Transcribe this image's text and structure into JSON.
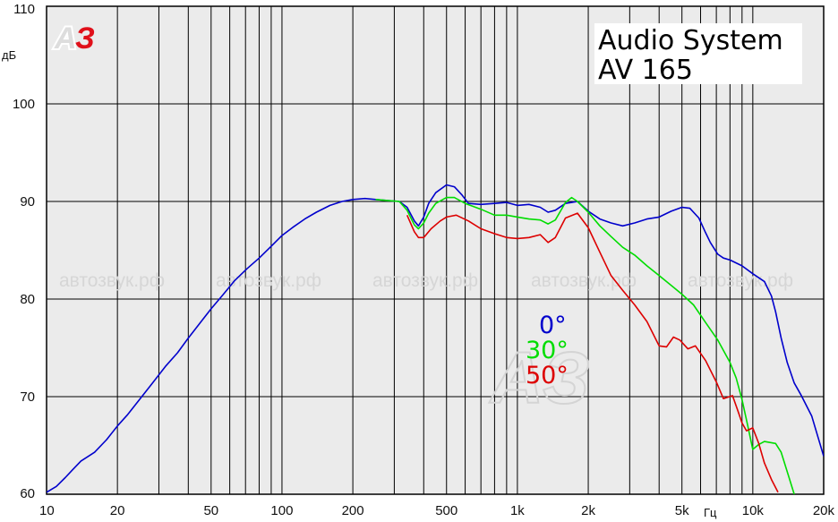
{
  "chart_data": {
    "type": "line",
    "title_lines": [
      "Audio System",
      "AV 165"
    ],
    "ylabel": "дБ",
    "xlabel": "Гц",
    "xscale": "log",
    "xlim": [
      10,
      20000
    ],
    "ylim": [
      60,
      110
    ],
    "xticks": [
      {
        "value": 10,
        "label": "10"
      },
      {
        "value": 20,
        "label": "20"
      },
      {
        "value": 50,
        "label": "50"
      },
      {
        "value": 100,
        "label": "100"
      },
      {
        "value": 200,
        "label": "200"
      },
      {
        "value": 500,
        "label": "500"
      },
      {
        "value": 1000,
        "label": "1k"
      },
      {
        "value": 2000,
        "label": "2k"
      },
      {
        "value": 5000,
        "label": "5k"
      },
      {
        "value": 10000,
        "label": "10k"
      },
      {
        "value": 20000,
        "label": "20k"
      }
    ],
    "yticks": [
      60,
      70,
      80,
      90,
      100,
      110
    ],
    "grid": true,
    "logo_text": "АЗ",
    "watermark_text": "автозвук.рф",
    "series": [
      {
        "name": "0°",
        "color": "#0000cc",
        "points": [
          [
            10,
            60.2
          ],
          [
            11,
            60.8
          ],
          [
            12,
            61.7
          ],
          [
            13,
            62.6
          ],
          [
            14,
            63.4
          ],
          [
            16,
            64.3
          ],
          [
            18,
            65.6
          ],
          [
            20,
            67
          ],
          [
            22,
            68.1
          ],
          [
            25,
            69.8
          ],
          [
            28,
            71.3
          ],
          [
            32,
            73.1
          ],
          [
            36,
            74.5
          ],
          [
            40,
            76
          ],
          [
            45,
            77.6
          ],
          [
            50,
            79
          ],
          [
            56,
            80.4
          ],
          [
            63,
            81.9
          ],
          [
            71,
            83.1
          ],
          [
            80,
            84.2
          ],
          [
            90,
            85.4
          ],
          [
            100,
            86.5
          ],
          [
            112,
            87.4
          ],
          [
            125,
            88.2
          ],
          [
            140,
            88.9
          ],
          [
            160,
            89.6
          ],
          [
            180,
            90.0
          ],
          [
            200,
            90.2
          ],
          [
            225,
            90.3
          ],
          [
            250,
            90.2
          ],
          [
            280,
            90.1
          ],
          [
            315,
            90.0
          ],
          [
            340,
            89.4
          ],
          [
            365,
            88.0
          ],
          [
            380,
            87.5
          ],
          [
            400,
            88.4
          ],
          [
            420,
            89.8
          ],
          [
            450,
            90.9
          ],
          [
            500,
            91.7
          ],
          [
            540,
            91.5
          ],
          [
            580,
            90.7
          ],
          [
            620,
            89.8
          ],
          [
            700,
            89.7
          ],
          [
            800,
            89.8
          ],
          [
            900,
            89.9
          ],
          [
            1000,
            89.6
          ],
          [
            1120,
            89.7
          ],
          [
            1250,
            89.4
          ],
          [
            1350,
            88.9
          ],
          [
            1450,
            89.1
          ],
          [
            1600,
            89.8
          ],
          [
            1800,
            90.0
          ],
          [
            2000,
            89.0
          ],
          [
            2240,
            88.2
          ],
          [
            2500,
            87.8
          ],
          [
            2800,
            87.5
          ],
          [
            3150,
            87.8
          ],
          [
            3550,
            88.2
          ],
          [
            4000,
            88.4
          ],
          [
            4500,
            89.0
          ],
          [
            5000,
            89.4
          ],
          [
            5400,
            89.3
          ],
          [
            5900,
            88.3
          ],
          [
            6300,
            86.8
          ],
          [
            6600,
            85.8
          ],
          [
            7100,
            84.6
          ],
          [
            7500,
            84.2
          ],
          [
            8000,
            84.0
          ],
          [
            9000,
            83.4
          ],
          [
            10000,
            82.6
          ],
          [
            11200,
            81.8
          ],
          [
            12000,
            80.3
          ],
          [
            12500,
            78.7
          ],
          [
            13200,
            76.0
          ],
          [
            14000,
            73.5
          ],
          [
            15000,
            71.4
          ],
          [
            16000,
            70.2
          ],
          [
            17800,
            68.0
          ],
          [
            20000,
            63.9
          ]
        ]
      },
      {
        "name": "30°",
        "color": "#00dd00",
        "points": [
          [
            250,
            90.2
          ],
          [
            280,
            90.1
          ],
          [
            315,
            90.0
          ],
          [
            340,
            89.1
          ],
          [
            365,
            87.6
          ],
          [
            380,
            87.2
          ],
          [
            400,
            87.8
          ],
          [
            420,
            88.8
          ],
          [
            450,
            89.8
          ],
          [
            500,
            90.4
          ],
          [
            540,
            90.4
          ],
          [
            600,
            89.8
          ],
          [
            700,
            89.2
          ],
          [
            800,
            88.6
          ],
          [
            900,
            88.6
          ],
          [
            1000,
            88.4
          ],
          [
            1120,
            88.2
          ],
          [
            1250,
            88.1
          ],
          [
            1350,
            87.7
          ],
          [
            1450,
            88.1
          ],
          [
            1600,
            89.9
          ],
          [
            1700,
            90.4
          ],
          [
            1800,
            90.0
          ],
          [
            2000,
            88.9
          ],
          [
            2240,
            87.5
          ],
          [
            2500,
            86.4
          ],
          [
            2800,
            85.3
          ],
          [
            3150,
            84.5
          ],
          [
            3550,
            83.4
          ],
          [
            4000,
            82.4
          ],
          [
            4500,
            81.4
          ],
          [
            5000,
            80.5
          ],
          [
            5600,
            79.4
          ],
          [
            6300,
            77.6
          ],
          [
            7100,
            75.8
          ],
          [
            8000,
            73.5
          ],
          [
            8500,
            71.9
          ],
          [
            9000,
            69.7
          ],
          [
            9500,
            67.1
          ],
          [
            10000,
            64.6
          ],
          [
            10600,
            65.1
          ],
          [
            11200,
            65.4
          ],
          [
            12500,
            65.2
          ],
          [
            13200,
            64.3
          ],
          [
            14000,
            62.3
          ],
          [
            15000,
            60
          ]
        ]
      },
      {
        "name": "50°",
        "color": "#dd0000",
        "points": [
          [
            340,
            88.6
          ],
          [
            365,
            86.9
          ],
          [
            380,
            86.3
          ],
          [
            400,
            86.3
          ],
          [
            430,
            87.2
          ],
          [
            470,
            88.0
          ],
          [
            500,
            88.4
          ],
          [
            550,
            88.6
          ],
          [
            620,
            88.0
          ],
          [
            700,
            87.2
          ],
          [
            800,
            86.7
          ],
          [
            900,
            86.3
          ],
          [
            1000,
            86.2
          ],
          [
            1120,
            86.3
          ],
          [
            1250,
            86.6
          ],
          [
            1350,
            85.8
          ],
          [
            1450,
            86.3
          ],
          [
            1600,
            88.3
          ],
          [
            1800,
            88.8
          ],
          [
            2000,
            87.3
          ],
          [
            2240,
            84.8
          ],
          [
            2500,
            82.4
          ],
          [
            2800,
            80.9
          ],
          [
            3150,
            79.4
          ],
          [
            3550,
            77.7
          ],
          [
            4000,
            75.2
          ],
          [
            4300,
            75.1
          ],
          [
            4600,
            76.1
          ],
          [
            4900,
            75.8
          ],
          [
            5300,
            74.9
          ],
          [
            5700,
            75.2
          ],
          [
            6300,
            73.7
          ],
          [
            7000,
            71.5
          ],
          [
            7500,
            69.8
          ],
          [
            8200,
            70.1
          ],
          [
            8600,
            68.7
          ],
          [
            9000,
            67.3
          ],
          [
            9400,
            66.5
          ],
          [
            10000,
            66.8
          ],
          [
            10600,
            65.2
          ],
          [
            11200,
            63.2
          ],
          [
            12000,
            61.5
          ],
          [
            12800,
            60.2
          ]
        ]
      }
    ]
  }
}
